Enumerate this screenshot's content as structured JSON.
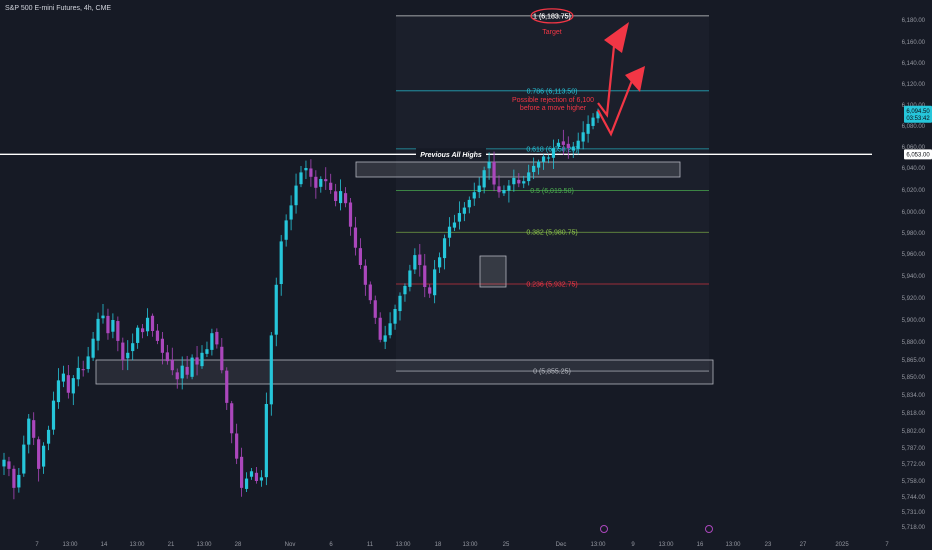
{
  "chart_data": {
    "type": "candlestick",
    "title": "S&P 500 E-mini Futures, 4h, CME",
    "x_tick_labels": [
      "7",
      "13:00",
      "14",
      "13:00",
      "21",
      "13:00",
      "28",
      "Nov",
      "6",
      "11",
      "13:00",
      "18",
      "13:00",
      "25",
      "Dec",
      "13:00",
      "9",
      "13:00",
      "16",
      "13:00",
      "23",
      "27",
      "2025",
      "7"
    ],
    "y_tick_labels": [
      "6,180.00",
      "6,160.00",
      "6,140.00",
      "6,120.00",
      "6,100.00",
      "6,080.00",
      "6,060.00",
      "6,040.00",
      "6,020.00",
      "6,000.00",
      "5,980.00",
      "5,960.00",
      "5,940.00",
      "5,920.00",
      "5,900.00",
      "5,880.00",
      "5,865.00",
      "5,850.00",
      "5,834.00",
      "5,818.00",
      "5,802.00",
      "5,787.00",
      "5,772.00",
      "5,758.00",
      "5,744.00",
      "5,731.00",
      "5,718.00"
    ],
    "price_tags": {
      "current": "6,094.50",
      "countdown": "03:53:42",
      "previous_high": "6,053.00"
    },
    "fib_levels": [
      {
        "ratio": "1",
        "label": "1 (6,183.75)",
        "price": 6183.75,
        "color": "#ffffff"
      },
      {
        "ratio": "0.786",
        "label": "0.786 (6,113.50)",
        "price": 6113.5,
        "color": "#26c6da"
      },
      {
        "ratio": "0.618",
        "label": "0.618 (6,058.25)",
        "price": 6058.25,
        "color": "#26c6da"
      },
      {
        "ratio": "0.5",
        "label": "0.5 (6,019.50)",
        "price": 6019.5,
        "color": "#4caf50"
      },
      {
        "ratio": "0.382",
        "label": "0.382 (5,980.75)",
        "price": 5980.75,
        "color": "#8bc34a"
      },
      {
        "ratio": "0.236",
        "label": "0.236 (5,932.75)",
        "price": 5932.75,
        "color": "#f23645"
      },
      {
        "ratio": "0",
        "label": "0 (5,855.25)",
        "price": 5855.25,
        "color": "#b2b5be"
      }
    ],
    "annotations": {
      "target": "Target",
      "rejection_line1": "Possible rejection of 6,100",
      "rejection_line2": "before a move higher",
      "previous_highs": "Previous All Highs"
    },
    "colors": {
      "up": "#26c6da",
      "down": "#ab47bc",
      "background": "#161a25",
      "arrow": "#f23645"
    },
    "series": [
      {
        "name": "",
        "close_path": [
          5776,
          5768,
          5752,
          5763,
          5790,
          5813,
          5796,
          5768,
          5789,
          5803,
          5829,
          5847,
          5853,
          5836,
          5849,
          5858,
          5856,
          5868,
          5883,
          5901,
          5904,
          5888,
          5900,
          5881,
          5865,
          5871,
          5879,
          5893,
          5889,
          5902,
          5890,
          5881,
          5871,
          5864,
          5856,
          5848,
          5860,
          5852,
          5867,
          5861,
          5871,
          5874,
          5888,
          5878,
          5856,
          5827,
          5800,
          5777,
          5752,
          5760,
          5766,
          5758,
          5761,
          5826,
          5886,
          5932,
          5972,
          5992,
          6006,
          6024,
          6036,
          6040,
          6032,
          6022,
          6030,
          6028,
          6020,
          6010,
          6019,
          6008,
          5986,
          5966,
          5950,
          5932,
          5918,
          5902,
          5882,
          5886,
          5897,
          5910,
          5922,
          5931,
          5945,
          5959,
          5950,
          5930,
          5924,
          5946,
          5957,
          5975,
          5986,
          5990,
          5999,
          6004,
          6011,
          6018,
          6024,
          6038,
          6046,
          6025,
          6018,
          6020,
          6024,
          6031,
          6026,
          6028,
          6036,
          6042,
          6046,
          6051,
          6050,
          6059,
          6064,
          6062,
          6059,
          6060,
          6066,
          6074,
          6082,
          6088,
          6094
        ]
      }
    ]
  }
}
